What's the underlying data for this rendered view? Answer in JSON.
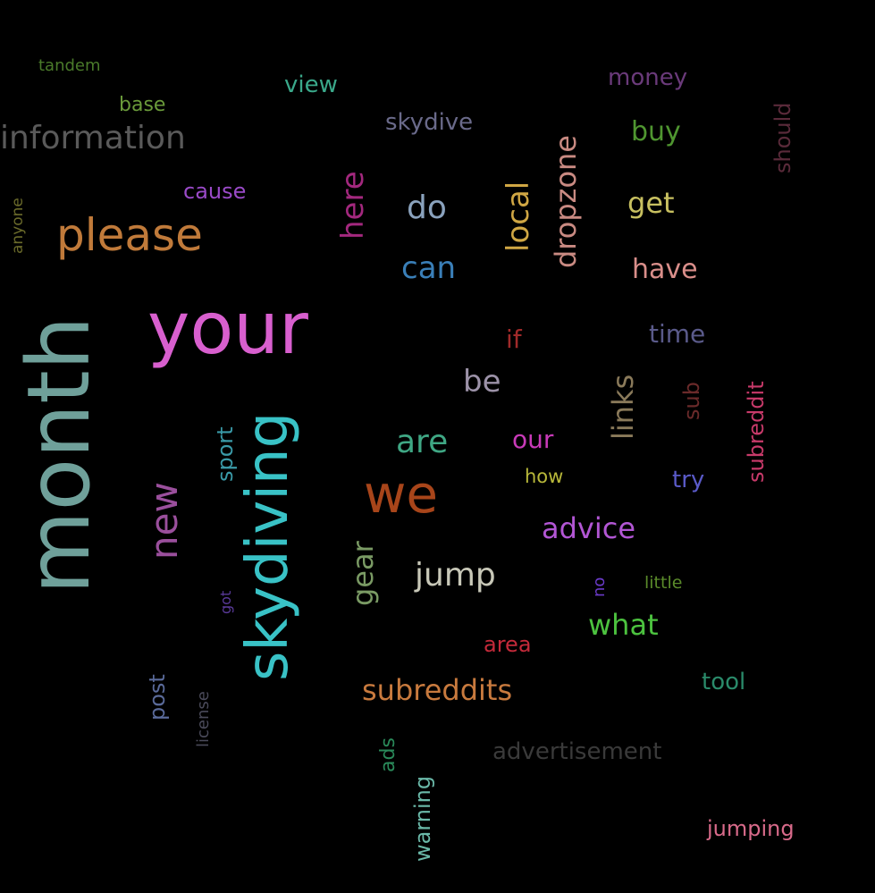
{
  "background": "#000000",
  "words": [
    {
      "text": "month",
      "color": "#6fa09a"
    },
    {
      "text": "your",
      "color": "#d85fce"
    },
    {
      "text": "skydiving",
      "color": "#39c2c6"
    },
    {
      "text": "we",
      "color": "#a8451a"
    },
    {
      "text": "please",
      "color": "#c07a3a"
    },
    {
      "text": "new",
      "color": "#9a4f9c"
    },
    {
      "text": "information",
      "color": "#5a5a5a"
    },
    {
      "text": "are",
      "color": "#3fa784"
    },
    {
      "text": "jump",
      "color": "#c8c8b8"
    },
    {
      "text": "subreddits",
      "color": "#c87a3e"
    },
    {
      "text": "advice",
      "color": "#b256d4"
    },
    {
      "text": "what",
      "color": "#4cc23f"
    },
    {
      "text": "dropzone",
      "color": "#c98a82"
    },
    {
      "text": "local",
      "color": "#d0a744"
    },
    {
      "text": "here",
      "color": "#a3287e"
    },
    {
      "text": "do",
      "color": "#8aa2bd"
    },
    {
      "text": "can",
      "color": "#3a7fb8"
    },
    {
      "text": "get",
      "color": "#c8c060"
    },
    {
      "text": "have",
      "color": "#d98e8a"
    },
    {
      "text": "be",
      "color": "#9c92a8"
    },
    {
      "text": "links",
      "color": "#8a7a5a"
    },
    {
      "text": "gear",
      "color": "#7a9a64"
    },
    {
      "text": "buy",
      "color": "#4f9630"
    },
    {
      "text": "money",
      "color": "#6a3a7a"
    },
    {
      "text": "view",
      "color": "#3aa88a"
    },
    {
      "text": "skydive",
      "color": "#6a6a8a"
    },
    {
      "text": "time",
      "color": "#5a5a8a"
    },
    {
      "text": "our",
      "color": "#c83ab8"
    },
    {
      "text": "area",
      "color": "#c42a3a"
    },
    {
      "text": "tool",
      "color": "#2a8a6a"
    },
    {
      "text": "advertisement",
      "color": "#3a3a3a"
    },
    {
      "text": "jumping",
      "color": "#d86a8a"
    },
    {
      "text": "post",
      "color": "#5a6a9a"
    },
    {
      "text": "sport",
      "color": "#3a9aa8"
    },
    {
      "text": "try",
      "color": "#5a5ac8"
    },
    {
      "text": "subreddit",
      "color": "#c83a6a"
    },
    {
      "text": "if",
      "color": "#a02a2a"
    },
    {
      "text": "sub",
      "color": "#6a2a2a"
    },
    {
      "text": "cause",
      "color": "#9a4ac8"
    },
    {
      "text": "base",
      "color": "#6a9a3a"
    },
    {
      "text": "how",
      "color": "#b8b83a"
    },
    {
      "text": "warning",
      "color": "#6ab8a8"
    },
    {
      "text": "ads",
      "color": "#2a8a5a"
    },
    {
      "text": "should",
      "color": "#5a2a3a"
    },
    {
      "text": "tandem",
      "color": "#4a7a2a"
    },
    {
      "text": "anyone",
      "color": "#6a6a2a"
    },
    {
      "text": "license",
      "color": "#4a4a5a"
    },
    {
      "text": "got",
      "color": "#5a3a9a"
    },
    {
      "text": "no",
      "color": "#6a3ac8"
    },
    {
      "text": "little",
      "color": "#5a8a2a"
    }
  ]
}
